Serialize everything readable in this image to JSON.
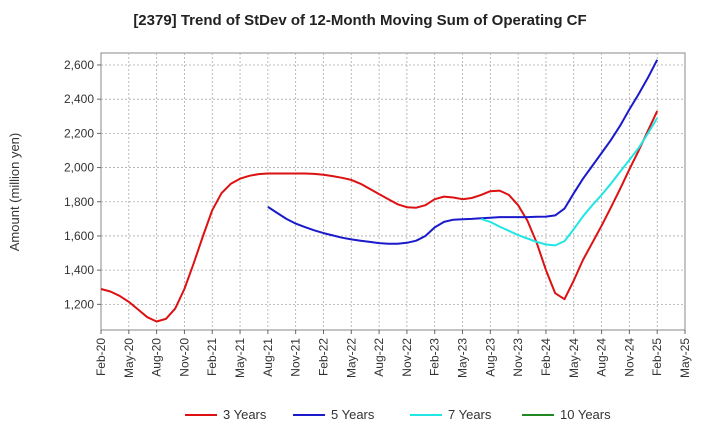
{
  "chart_data": {
    "type": "line",
    "title": "[2379]  Trend of StDev of 12-Month Moving Sum of Operating CF",
    "xlabel": "",
    "ylabel": "Amount (million yen)",
    "ylim": [
      1050,
      2670
    ],
    "yticks": [
      1200,
      1400,
      1600,
      1800,
      2000,
      2200,
      2400,
      2600
    ],
    "ytick_labels": [
      "1,200",
      "1,400",
      "1,600",
      "1,800",
      "2,000",
      "2,200",
      "2,400",
      "2,600"
    ],
    "x_categories": [
      "Feb-20",
      "May-20",
      "Aug-20",
      "Nov-20",
      "Feb-21",
      "May-21",
      "Aug-21",
      "Nov-21",
      "Feb-22",
      "May-22",
      "Aug-22",
      "Nov-22",
      "Feb-23",
      "May-23",
      "Aug-23",
      "Nov-23",
      "Feb-24",
      "May-24",
      "Aug-24",
      "Nov-24",
      "Feb-25",
      "May-25"
    ],
    "grid": true,
    "legend_position": "bottom",
    "series": [
      {
        "name": "3 Years",
        "color": "#dd1111",
        "points": [
          [
            "Feb-20",
            1290
          ],
          [
            "Mar-20",
            1275
          ],
          [
            "Apr-20",
            1250
          ],
          [
            "May-20",
            1215
          ],
          [
            "Jun-20",
            1170
          ],
          [
            "Jul-20",
            1125
          ],
          [
            "Aug-20",
            1100
          ],
          [
            "Sep-20",
            1115
          ],
          [
            "Oct-20",
            1175
          ],
          [
            "Nov-20",
            1290
          ],
          [
            "Dec-20",
            1440
          ],
          [
            "Jan-21",
            1600
          ],
          [
            "Feb-21",
            1750
          ],
          [
            "Mar-21",
            1850
          ],
          [
            "Apr-21",
            1905
          ],
          [
            "May-21",
            1935
          ],
          [
            "Jun-21",
            1952
          ],
          [
            "Jul-21",
            1962
          ],
          [
            "Aug-21",
            1965
          ],
          [
            "Sep-21",
            1965
          ],
          [
            "Oct-21",
            1965
          ],
          [
            "Nov-21",
            1965
          ],
          [
            "Dec-21",
            1965
          ],
          [
            "Jan-22",
            1963
          ],
          [
            "Feb-22",
            1958
          ],
          [
            "Mar-22",
            1950
          ],
          [
            "Apr-22",
            1940
          ],
          [
            "May-22",
            1928
          ],
          [
            "Jun-22",
            1905
          ],
          [
            "Jul-22",
            1875
          ],
          [
            "Aug-22",
            1845
          ],
          [
            "Sep-22",
            1815
          ],
          [
            "Oct-22",
            1785
          ],
          [
            "Nov-22",
            1768
          ],
          [
            "Dec-22",
            1765
          ],
          [
            "Jan-23",
            1780
          ],
          [
            "Feb-23",
            1815
          ],
          [
            "Mar-23",
            1830
          ],
          [
            "Apr-23",
            1825
          ],
          [
            "May-23",
            1815
          ],
          [
            "Jun-23",
            1822
          ],
          [
            "Jul-23",
            1840
          ],
          [
            "Aug-23",
            1862
          ],
          [
            "Sep-23",
            1865
          ],
          [
            "Oct-23",
            1840
          ],
          [
            "Nov-23",
            1780
          ],
          [
            "Dec-23",
            1690
          ],
          [
            "Jan-24",
            1560
          ],
          [
            "Feb-24",
            1400
          ],
          [
            "Mar-24",
            1265
          ],
          [
            "Apr-24",
            1230
          ],
          [
            "May-24",
            1340
          ],
          [
            "Jun-24",
            1460
          ],
          [
            "Jul-24",
            1560
          ],
          [
            "Aug-24",
            1660
          ],
          [
            "Sep-24",
            1765
          ],
          [
            "Oct-24",
            1875
          ],
          [
            "Nov-24",
            1990
          ],
          [
            "Dec-24",
            2100
          ],
          [
            "Jan-25",
            2215
          ],
          [
            "Feb-25",
            2330
          ]
        ]
      },
      {
        "name": "5 Years",
        "color": "#1a1acc",
        "points": [
          [
            "Aug-21",
            1770
          ],
          [
            "Sep-21",
            1735
          ],
          [
            "Oct-21",
            1700
          ],
          [
            "Nov-21",
            1672
          ],
          [
            "Dec-21",
            1652
          ],
          [
            "Jan-22",
            1633
          ],
          [
            "Feb-22",
            1617
          ],
          [
            "Mar-22",
            1603
          ],
          [
            "Apr-22",
            1590
          ],
          [
            "May-22",
            1580
          ],
          [
            "Jun-22",
            1572
          ],
          [
            "Jul-22",
            1565
          ],
          [
            "Aug-22",
            1558
          ],
          [
            "Sep-22",
            1555
          ],
          [
            "Oct-22",
            1555
          ],
          [
            "Nov-22",
            1560
          ],
          [
            "Dec-22",
            1572
          ],
          [
            "Jan-23",
            1600
          ],
          [
            "Feb-23",
            1650
          ],
          [
            "Mar-23",
            1682
          ],
          [
            "Apr-23",
            1695
          ],
          [
            "May-23",
            1698
          ],
          [
            "Jun-23",
            1700
          ],
          [
            "Jul-23",
            1703
          ],
          [
            "Aug-23",
            1707
          ],
          [
            "Sep-23",
            1710
          ],
          [
            "Oct-23",
            1710
          ],
          [
            "Nov-23",
            1710
          ],
          [
            "Dec-23",
            1710
          ],
          [
            "Jan-24",
            1712
          ],
          [
            "Feb-24",
            1713
          ],
          [
            "Mar-24",
            1720
          ],
          [
            "Apr-24",
            1760
          ],
          [
            "May-24",
            1850
          ],
          [
            "Jun-24",
            1935
          ],
          [
            "Jul-24",
            2010
          ],
          [
            "Aug-24",
            2085
          ],
          [
            "Sep-24",
            2160
          ],
          [
            "Oct-24",
            2245
          ],
          [
            "Nov-24",
            2340
          ],
          [
            "Dec-24",
            2430
          ],
          [
            "Jan-25",
            2525
          ],
          [
            "Feb-25",
            2630
          ]
        ]
      },
      {
        "name": "7 Years",
        "color": "#22e5e5",
        "points": [
          [
            "Jul-23",
            1700
          ],
          [
            "Aug-23",
            1682
          ],
          [
            "Sep-23",
            1655
          ],
          [
            "Oct-23",
            1630
          ],
          [
            "Nov-23",
            1605
          ],
          [
            "Dec-23",
            1585
          ],
          [
            "Jan-24",
            1565
          ],
          [
            "Feb-24",
            1550
          ],
          [
            "Mar-24",
            1545
          ],
          [
            "Apr-24",
            1570
          ],
          [
            "May-24",
            1640
          ],
          [
            "Jun-24",
            1715
          ],
          [
            "Jul-24",
            1780
          ],
          [
            "Aug-24",
            1840
          ],
          [
            "Sep-24",
            1905
          ],
          [
            "Oct-24",
            1975
          ],
          [
            "Nov-24",
            2045
          ],
          [
            "Dec-24",
            2115
          ],
          [
            "Jan-25",
            2200
          ],
          [
            "Feb-25",
            2290
          ]
        ]
      },
      {
        "name": "10 Years",
        "color": "#228822",
        "points": []
      }
    ]
  }
}
